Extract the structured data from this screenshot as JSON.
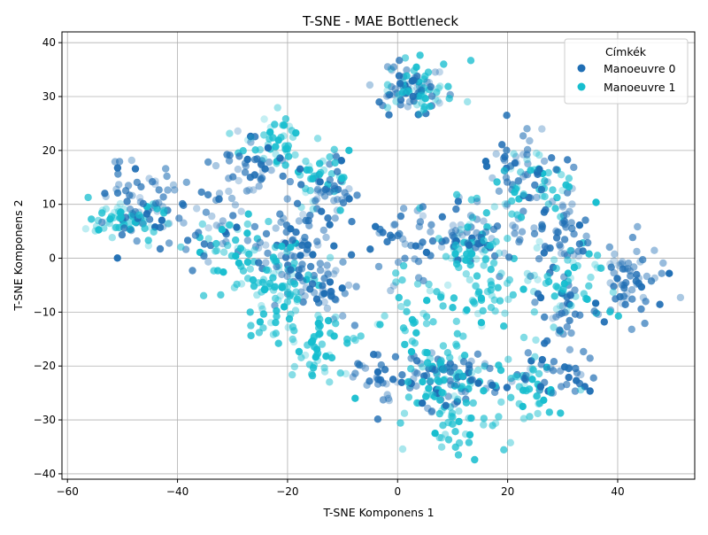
{
  "chart_data": {
    "type": "scatter",
    "title": "T-SNE - MAE Bottleneck",
    "xlabel": "T-SNE Komponens 1",
    "ylabel": "T-SNE Komponens 2",
    "xlim": [
      -61,
      54
    ],
    "ylim": [
      -41,
      42
    ],
    "xticks": [
      -60,
      -40,
      -20,
      0,
      20,
      40
    ],
    "yticks": [
      -40,
      -30,
      -20,
      -10,
      0,
      10,
      20,
      30,
      40
    ],
    "grid": true,
    "legend": {
      "title": "Címkék",
      "position": "top-right"
    },
    "series": [
      {
        "name": "Manoeuvre 0",
        "color": "#1f6eb4",
        "clusters": [
          {
            "c": [
              -46,
              10
            ],
            "s": [
              3.5,
              3.5
            ],
            "n": 70,
            "seed": 11
          },
          {
            "c": [
              -33,
              6
            ],
            "s": [
              2.5,
              4.0
            ],
            "n": 35,
            "seed": 12
          },
          {
            "c": [
              -27,
              17
            ],
            "s": [
              3.0,
              3.0
            ],
            "n": 40,
            "seed": 13
          },
          {
            "c": [
              -20,
              2
            ],
            "s": [
              3.5,
              4.0
            ],
            "n": 60,
            "seed": 14
          },
          {
            "c": [
              -13,
              12
            ],
            "s": [
              3.5,
              4.0
            ],
            "n": 55,
            "seed": 15
          },
          {
            "c": [
              -13,
              -6
            ],
            "s": [
              3.0,
              3.0
            ],
            "n": 40,
            "seed": 16
          },
          {
            "c": [
              2,
              31
            ],
            "s": [
              3.5,
              3.0
            ],
            "n": 55,
            "seed": 17
          },
          {
            "c": [
              3,
              3
            ],
            "s": [
              4.0,
              3.5
            ],
            "n": 45,
            "seed": 18
          },
          {
            "c": [
              14,
              3
            ],
            "s": [
              3.0,
              3.5
            ],
            "n": 45,
            "seed": 19
          },
          {
            "c": [
              22,
              16
            ],
            "s": [
              4.0,
              4.5
            ],
            "n": 60,
            "seed": 20
          },
          {
            "c": [
              30,
              4
            ],
            "s": [
              3.5,
              3.5
            ],
            "n": 50,
            "seed": 21
          },
          {
            "c": [
              42,
              -4
            ],
            "s": [
              3.0,
              3.5
            ],
            "n": 60,
            "seed": 22
          },
          {
            "c": [
              8,
              -22
            ],
            "s": [
              4.5,
              3.5
            ],
            "n": 70,
            "seed": 23
          },
          {
            "c": [
              28,
              -22
            ],
            "s": [
              4.0,
              3.5
            ],
            "n": 40,
            "seed": 24
          },
          {
            "c": [
              -5,
              -22
            ],
            "s": [
              2.5,
              3.0
            ],
            "n": 25,
            "seed": 25
          },
          {
            "c": [
              30,
              -10
            ],
            "s": [
              3.0,
              3.0
            ],
            "n": 30,
            "seed": 26
          }
        ]
      },
      {
        "name": "Manoeuvre 1",
        "color": "#17becf",
        "clusters": [
          {
            "c": [
              -50,
              7
            ],
            "s": [
              4.0,
              1.8
            ],
            "n": 55,
            "seed": 31
          },
          {
            "c": [
              -22,
              22
            ],
            "s": [
              3.0,
              2.5
            ],
            "n": 40,
            "seed": 32
          },
          {
            "c": [
              -22,
              -5
            ],
            "s": [
              3.5,
              4.5
            ],
            "n": 80,
            "seed": 33
          },
          {
            "c": [
              -15,
              -16
            ],
            "s": [
              4.0,
              3.5
            ],
            "n": 55,
            "seed": 34
          },
          {
            "c": [
              -30,
              0
            ],
            "s": [
              3.0,
              3.5
            ],
            "n": 40,
            "seed": 35
          },
          {
            "c": [
              -15,
              15
            ],
            "s": [
              3.0,
              3.0
            ],
            "n": 35,
            "seed": 36
          },
          {
            "c": [
              4,
              32
            ],
            "s": [
              3.0,
              2.5
            ],
            "n": 50,
            "seed": 37
          },
          {
            "c": [
              14,
              2
            ],
            "s": [
              3.0,
              3.5
            ],
            "n": 55,
            "seed": 38
          },
          {
            "c": [
              24,
              12
            ],
            "s": [
              4.0,
              4.0
            ],
            "n": 45,
            "seed": 39
          },
          {
            "c": [
              30,
              -5
            ],
            "s": [
              4.0,
              4.0
            ],
            "n": 55,
            "seed": 40
          },
          {
            "c": [
              9,
              -22
            ],
            "s": [
              4.0,
              4.0
            ],
            "n": 80,
            "seed": 41
          },
          {
            "c": [
              12,
              -32
            ],
            "s": [
              3.5,
              2.5
            ],
            "n": 30,
            "seed": 42
          },
          {
            "c": [
              24,
              -25
            ],
            "s": [
              4.0,
              3.0
            ],
            "n": 40,
            "seed": 43
          },
          {
            "c": [
              16,
              -8
            ],
            "s": [
              3.0,
              3.0
            ],
            "n": 30,
            "seed": 44
          },
          {
            "c": [
              3,
              -10
            ],
            "s": [
              3.5,
              3.5
            ],
            "n": 35,
            "seed": 45
          }
        ]
      }
    ]
  }
}
